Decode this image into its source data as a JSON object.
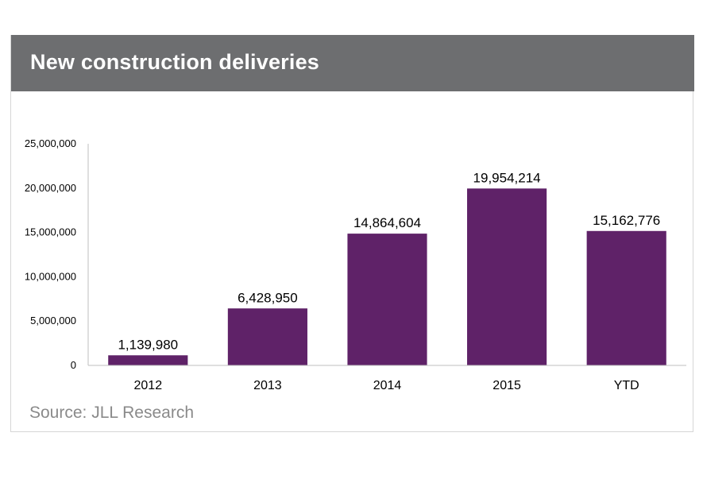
{
  "header": {
    "title": "New construction deliveries"
  },
  "footer": {
    "source": "Source: JLL Research"
  },
  "colors": {
    "header_bg": "#6d6e70",
    "bar": "#5f2268",
    "source_text": "#8a8a8a"
  },
  "chart_data": {
    "type": "bar",
    "title": "New construction deliveries",
    "xlabel": "",
    "ylabel": "",
    "categories": [
      "2012",
      "2013",
      "2014",
      "2015",
      "YTD"
    ],
    "values": [
      1139980,
      6428950,
      14864604,
      19954214,
      15162776
    ],
    "data_labels": [
      "1,139,980",
      "6,428,950",
      "14,864,604",
      "19,954,214",
      "15,162,776"
    ],
    "ylim": [
      0,
      25000000
    ],
    "yticks": [
      0,
      5000000,
      10000000,
      15000000,
      20000000,
      25000000
    ],
    "ytick_labels": [
      "0",
      "5,000,000",
      "10,000,000",
      "15,000,000",
      "20,000,000",
      "25,000,000"
    ],
    "grid": false,
    "legend": "none"
  }
}
